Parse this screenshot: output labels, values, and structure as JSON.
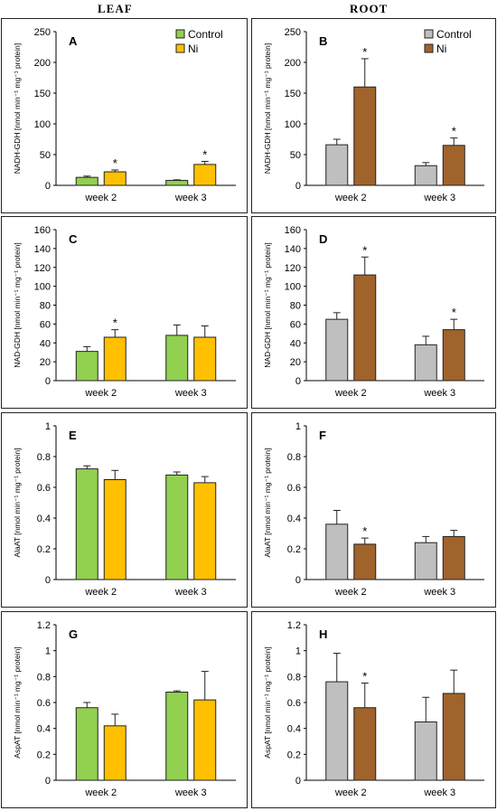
{
  "column_titles": {
    "left": "LEAF",
    "right": "ROOT"
  },
  "colors": {
    "leaf_control": "#92D050",
    "leaf_ni": "#FFC000",
    "root_control": "#BFBFBF",
    "root_ni": "#A0632C"
  },
  "chart_data": [
    {
      "type": "bar",
      "panel": "A",
      "column": "leaf",
      "ylabel": "NADH-GDH [nmol min⁻¹ mg⁻¹ protein]",
      "ylim": [
        0,
        250
      ],
      "yticks": [
        0,
        50,
        100,
        150,
        200,
        250
      ],
      "tick_labels": [
        "0",
        "50",
        "100",
        "150",
        "200",
        "250"
      ],
      "categories": [
        "week 2",
        "week 3"
      ],
      "series": [
        {
          "name": "Control",
          "values": [
            13,
            8
          ],
          "errors": [
            2,
            1
          ],
          "color": "#92D050"
        },
        {
          "name": "Ni",
          "values": [
            22,
            34
          ],
          "errors": [
            3,
            5
          ],
          "color": "#FFC000"
        }
      ],
      "significance": [
        [
          false,
          true
        ],
        [
          false,
          true
        ]
      ],
      "legend": "top-right"
    },
    {
      "type": "bar",
      "panel": "B",
      "column": "root",
      "ylabel": "NADH-GDH [nmol min⁻¹ mg⁻¹ protein]",
      "ylim": [
        0,
        250
      ],
      "yticks": [
        0,
        50,
        100,
        150,
        200,
        250
      ],
      "tick_labels": [
        "0",
        "50",
        "100",
        "150",
        "200",
        "250"
      ],
      "categories": [
        "week 2",
        "week 3"
      ],
      "series": [
        {
          "name": "Control",
          "values": [
            66,
            32
          ],
          "errors": [
            9,
            5
          ],
          "color": "#BFBFBF"
        },
        {
          "name": "Ni",
          "values": [
            160,
            65
          ],
          "errors": [
            46,
            12
          ],
          "color": "#A0632C"
        }
      ],
      "significance": [
        [
          false,
          true
        ],
        [
          false,
          true
        ]
      ],
      "legend": "top-right"
    },
    {
      "type": "bar",
      "panel": "C",
      "column": "leaf",
      "ylabel": "NAD-GDH [nmol min⁻¹ mg⁻¹ protein]",
      "ylim": [
        0,
        160
      ],
      "yticks": [
        0,
        20,
        40,
        60,
        80,
        100,
        120,
        140,
        160
      ],
      "tick_labels": [
        "0",
        "20",
        "40",
        "60",
        "80",
        "100",
        "120",
        "140",
        "160"
      ],
      "categories": [
        "week 2",
        "week 3"
      ],
      "series": [
        {
          "name": "Control",
          "values": [
            31,
            48
          ],
          "errors": [
            5,
            11
          ],
          "color": "#92D050"
        },
        {
          "name": "Ni",
          "values": [
            46,
            46
          ],
          "errors": [
            8,
            12
          ],
          "color": "#FFC000"
        }
      ],
      "significance": [
        [
          false,
          true
        ],
        [
          false,
          false
        ]
      ]
    },
    {
      "type": "bar",
      "panel": "D",
      "column": "root",
      "ylabel": "NAD-GDH [nmol min⁻¹ mg⁻¹ protein]",
      "ylim": [
        0,
        160
      ],
      "yticks": [
        0,
        20,
        40,
        60,
        80,
        100,
        120,
        140,
        160
      ],
      "tick_labels": [
        "0",
        "20",
        "40",
        "60",
        "80",
        "100",
        "120",
        "140",
        "160"
      ],
      "categories": [
        "week 2",
        "week 3"
      ],
      "series": [
        {
          "name": "Control",
          "values": [
            65,
            38
          ],
          "errors": [
            7,
            9
          ],
          "color": "#BFBFBF"
        },
        {
          "name": "Ni",
          "values": [
            112,
            54
          ],
          "errors": [
            19,
            11
          ],
          "color": "#A0632C"
        }
      ],
      "significance": [
        [
          false,
          true
        ],
        [
          false,
          true
        ]
      ]
    },
    {
      "type": "bar",
      "panel": "E",
      "column": "leaf",
      "ylabel": "AlaAT [nmol min⁻¹ mg⁻¹ protein]",
      "ylim": [
        0,
        1
      ],
      "yticks": [
        0,
        0.2,
        0.4,
        0.6,
        0.8,
        1
      ],
      "tick_labels": [
        "0",
        "0.2",
        "0.4",
        "0.6",
        "0.8",
        "1"
      ],
      "categories": [
        "week 2",
        "week 3"
      ],
      "series": [
        {
          "name": "Control",
          "values": [
            0.72,
            0.68
          ],
          "errors": [
            0.02,
            0.02
          ],
          "color": "#92D050"
        },
        {
          "name": "Ni",
          "values": [
            0.65,
            0.63
          ],
          "errors": [
            0.06,
            0.04
          ],
          "color": "#FFC000"
        }
      ],
      "significance": [
        [
          false,
          false
        ],
        [
          false,
          false
        ]
      ]
    },
    {
      "type": "bar",
      "panel": "F",
      "column": "root",
      "ylabel": "AlaAT [nmol min⁻¹ mg⁻¹ protein]",
      "ylim": [
        0,
        1
      ],
      "yticks": [
        0,
        0.2,
        0.4,
        0.6,
        0.8,
        1
      ],
      "tick_labels": [
        "0",
        "0.2",
        "0.4",
        "0.6",
        "0.8",
        "1"
      ],
      "categories": [
        "week 2",
        "week 3"
      ],
      "series": [
        {
          "name": "Control",
          "values": [
            0.36,
            0.24
          ],
          "errors": [
            0.09,
            0.04
          ],
          "color": "#BFBFBF"
        },
        {
          "name": "Ni",
          "values": [
            0.23,
            0.28
          ],
          "errors": [
            0.04,
            0.04
          ],
          "color": "#A0632C"
        }
      ],
      "significance": [
        [
          false,
          true
        ],
        [
          false,
          false
        ]
      ]
    },
    {
      "type": "bar",
      "panel": "G",
      "column": "leaf",
      "ylabel": "AspAT [nmol min⁻¹ mg⁻¹ protein]",
      "ylim": [
        0,
        1.2
      ],
      "yticks": [
        0,
        0.2,
        0.4,
        0.6,
        0.8,
        1,
        1.2
      ],
      "tick_labels": [
        "0",
        "0.2",
        "0.4",
        "0.6",
        "0.8",
        "1",
        "1.2"
      ],
      "categories": [
        "week 2",
        "week 3"
      ],
      "series": [
        {
          "name": "Control",
          "values": [
            0.56,
            0.68
          ],
          "errors": [
            0.04,
            0.01
          ],
          "color": "#92D050"
        },
        {
          "name": "Ni",
          "values": [
            0.42,
            0.62
          ],
          "errors": [
            0.09,
            0.22
          ],
          "color": "#FFC000"
        }
      ],
      "significance": [
        [
          false,
          false
        ],
        [
          false,
          false
        ]
      ]
    },
    {
      "type": "bar",
      "panel": "H",
      "column": "root",
      "ylabel": "AspAT [nmol min⁻¹ mg⁻¹ protein]",
      "ylim": [
        0,
        1.2
      ],
      "yticks": [
        0,
        0.2,
        0.4,
        0.6,
        0.8,
        1,
        1.2
      ],
      "tick_labels": [
        "0",
        "0.2",
        "0.4",
        "0.6",
        "0.8",
        "1",
        "1.2"
      ],
      "categories": [
        "week 2",
        "week 3"
      ],
      "series": [
        {
          "name": "Control",
          "values": [
            0.76,
            0.45
          ],
          "errors": [
            0.22,
            0.19
          ],
          "color": "#BFBFBF"
        },
        {
          "name": "Ni",
          "values": [
            0.56,
            0.67
          ],
          "errors": [
            0.19,
            0.18
          ],
          "color": "#A0632C"
        }
      ],
      "significance": [
        [
          false,
          true
        ],
        [
          false,
          false
        ]
      ]
    }
  ]
}
